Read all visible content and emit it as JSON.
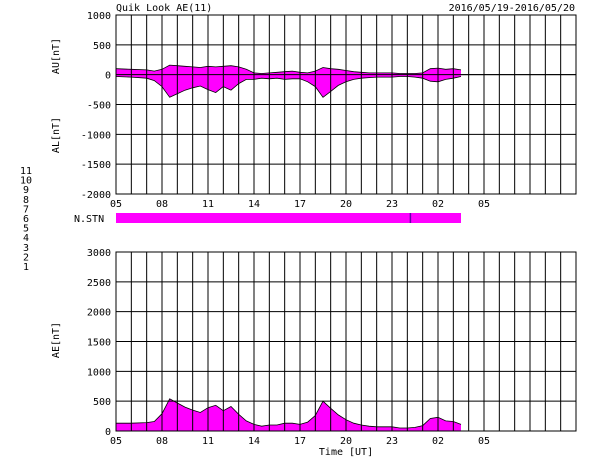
{
  "header": {
    "title": "Quik Look AE(11)",
    "date_range": "2016/05/19-2016/05/20"
  },
  "colors": {
    "fill": "#ff00ff",
    "grid": "#000000",
    "background": "#ffffff"
  },
  "station_legend": [
    {
      "label": "11",
      "color": "#00dddd"
    },
    {
      "label": "10",
      "color": "#ff00ff"
    },
    {
      "label": "9",
      "color": "#0000cc"
    },
    {
      "label": "8",
      "color": "#dddd00"
    },
    {
      "label": "7",
      "color": "#00bb00"
    },
    {
      "label": "6",
      "color": "#dd0000"
    },
    {
      "label": "5",
      "color": "#bbbbbb"
    },
    {
      "label": "4",
      "color": "#888888"
    },
    {
      "label": "3",
      "color": "#009999"
    },
    {
      "label": "2",
      "color": "#aa00aa"
    },
    {
      "label": "1",
      "color": "#0000aa"
    }
  ],
  "chart_data": [
    {
      "type": "area",
      "ylabel_top": "AU[nT]",
      "ylabel_bottom": "AL[nT]",
      "xlim": [
        5,
        35
      ],
      "ylim": [
        -2000,
        1000
      ],
      "yticks": [
        "1000",
        "500",
        "0",
        "-500",
        "-1000",
        "-1500",
        "-2000"
      ],
      "xticks": [
        "05",
        "08",
        "11",
        "14",
        "17",
        "20",
        "23",
        "02",
        "05"
      ],
      "data_end": 27.5,
      "series": [
        {
          "x": [
            5,
            6,
            7,
            7.5,
            8,
            8.5,
            9,
            9.5,
            10,
            10.5,
            11,
            11.5,
            12,
            12.5,
            13,
            13.5,
            14,
            14.5,
            15,
            15.5,
            16,
            16.5,
            17,
            17.5,
            18,
            18.5,
            19,
            19.5,
            20,
            20.5,
            21,
            21.5,
            22,
            22.5,
            23,
            23.5,
            24,
            24.5,
            25,
            25.5,
            26,
            26.5,
            27,
            27.5
          ],
          "values": [
            100,
            90,
            80,
            60,
            90,
            160,
            150,
            140,
            130,
            120,
            140,
            130,
            140,
            150,
            130,
            90,
            30,
            20,
            30,
            40,
            50,
            60,
            40,
            30,
            60,
            120,
            100,
            90,
            70,
            50,
            40,
            30,
            30,
            30,
            30,
            20,
            20,
            20,
            30,
            100,
            110,
            90,
            100,
            80
          ]
        },
        {
          "x": [
            5,
            6,
            7,
            7.5,
            8,
            8.5,
            9,
            9.5,
            10,
            10.5,
            11,
            11.5,
            12,
            12.5,
            13,
            13.5,
            14,
            14.5,
            15,
            15.5,
            16,
            16.5,
            17,
            17.5,
            18,
            18.5,
            19,
            19.5,
            20,
            20.5,
            21,
            21.5,
            22,
            22.5,
            23,
            23.5,
            24,
            24.5,
            25,
            25.5,
            26,
            26.5,
            27,
            27.5
          ],
          "values": [
            -30,
            -40,
            -60,
            -100,
            -200,
            -380,
            -320,
            -260,
            -220,
            -190,
            -250,
            -300,
            -200,
            -260,
            -150,
            -80,
            -80,
            -60,
            -70,
            -60,
            -80,
            -70,
            -70,
            -120,
            -200,
            -380,
            -280,
            -180,
            -120,
            -80,
            -60,
            -50,
            -40,
            -40,
            -40,
            -30,
            -30,
            -40,
            -60,
            -110,
            -120,
            -80,
            -60,
            -30
          ]
        }
      ]
    },
    {
      "type": "bar",
      "ylabel": "N.STN",
      "xlim": [
        5,
        35
      ],
      "values": [
        11
      ],
      "marker_x": 24.2,
      "data_end": 27.5
    },
    {
      "type": "area",
      "ylabel": "AE[nT]",
      "xlabel": "Time [UT]",
      "xlim": [
        5,
        35
      ],
      "ylim": [
        0,
        3000
      ],
      "yticks": [
        "3000",
        "2500",
        "2000",
        "1500",
        "1000",
        "500",
        "0"
      ],
      "xticks": [
        "05",
        "08",
        "11",
        "14",
        "17",
        "20",
        "23",
        "02",
        "05"
      ],
      "data_end": 27.5,
      "series": [
        {
          "x": [
            5,
            6,
            7,
            7.5,
            8,
            8.5,
            9,
            9.5,
            10,
            10.5,
            11,
            11.5,
            12,
            12.5,
            13,
            13.5,
            14,
            14.5,
            15,
            15.5,
            16,
            16.5,
            17,
            17.5,
            18,
            18.5,
            19,
            19.5,
            20,
            20.5,
            21,
            21.5,
            22,
            22.5,
            23,
            23.5,
            24,
            24.5,
            25,
            25.5,
            26,
            26.5,
            27,
            27.5
          ],
          "values": [
            130,
            130,
            140,
            160,
            290,
            540,
            470,
            400,
            350,
            310,
            390,
            430,
            340,
            410,
            280,
            170,
            110,
            80,
            100,
            100,
            130,
            130,
            110,
            150,
            260,
            500,
            380,
            270,
            190,
            130,
            100,
            80,
            70,
            70,
            70,
            50,
            50,
            60,
            90,
            210,
            230,
            170,
            160,
            110
          ]
        }
      ]
    }
  ]
}
